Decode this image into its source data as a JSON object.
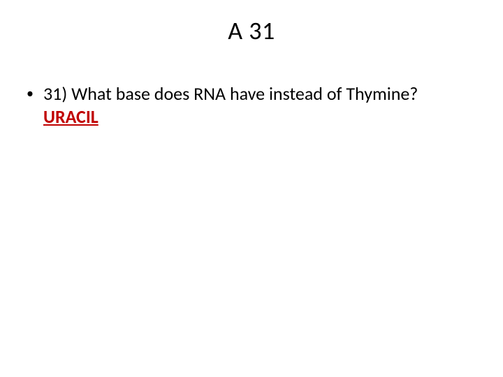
{
  "slide": {
    "title": "A 31",
    "bullet": {
      "marker": "•",
      "question": "31) What base does RNA have instead of Thymine? ",
      "answer": "URACIL"
    },
    "colors": {
      "background": "#ffffff",
      "title_text": "#000000",
      "body_text": "#000000",
      "answer_text": "#c00000"
    },
    "fonts": {
      "title_size_pt": 36,
      "body_size_pt": 26,
      "family": "Calibri"
    }
  }
}
